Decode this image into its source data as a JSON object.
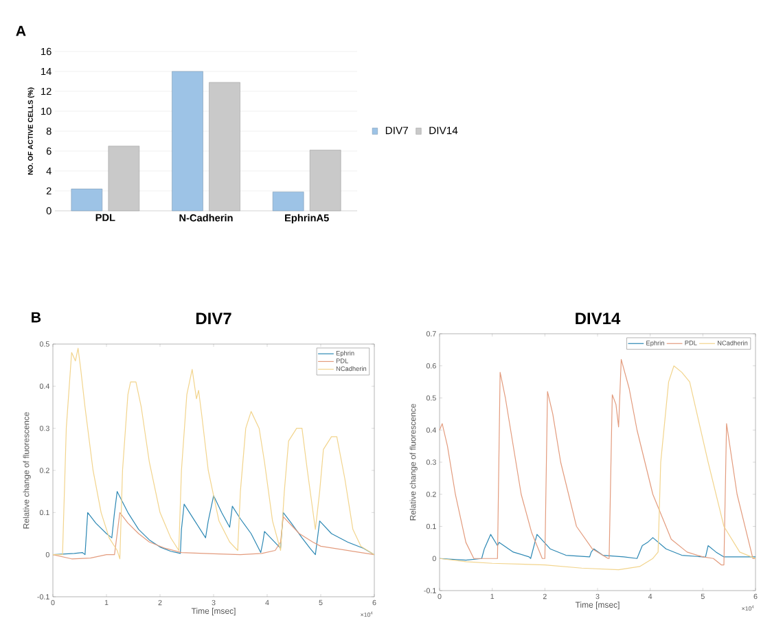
{
  "chart_data": [
    {
      "type": "bar",
      "categories": [
        "PDL",
        "N-Cadherin",
        "EphrinA5"
      ],
      "ylabel": "NO. OF ACTIVE CELLS (%)",
      "ylim": [
        0,
        16
      ],
      "yticks": [
        0,
        2,
        4,
        6,
        8,
        10,
        12,
        14,
        16
      ],
      "grid": "y",
      "legend": "right",
      "annotations": [
        "A"
      ],
      "series": [
        {
          "name": "DIV7",
          "color": "#9dc3e6",
          "values": [
            2.2,
            14,
            1.9
          ]
        },
        {
          "name": "DIV14",
          "color": "#c9c9c9",
          "values": [
            6.5,
            12.9,
            6.1
          ]
        }
      ]
    },
    {
      "type": "line",
      "title": "DIV7",
      "xlabel": "Time [msec]",
      "ylabel": "Relative change of fluorescence",
      "xlim": [
        0,
        6
      ],
      "xticks": [
        0,
        1,
        2,
        3,
        4,
        5,
        6
      ],
      "ylim": [
        -0.1,
        0.5
      ],
      "yticks": [
        -0.1,
        0,
        0.1,
        0.2,
        0.3,
        0.4,
        0.5
      ],
      "legend": "top right",
      "annotations": [
        "B",
        "×10$^{4}$"
      ],
      "series": [
        {
          "name": "Ephrin",
          "color": "#2b87b3",
          "x": [
            0,
            0.4,
            0.55,
            0.6,
            0.65,
            0.8,
            1.0,
            1.1,
            1.15,
            1.2,
            1.4,
            1.6,
            1.8,
            2.0,
            2.2,
            2.38,
            2.4,
            2.45,
            2.65,
            2.85,
            2.9,
            3.0,
            3.15,
            3.3,
            3.35,
            3.5,
            3.7,
            3.88,
            3.92,
            3.95,
            4.1,
            4.25,
            4.3,
            4.45,
            4.65,
            4.8,
            4.9,
            4.98,
            5.2,
            5.5,
            5.8,
            6.0
          ],
          "values": [
            0.0,
            0.003,
            0.005,
            0.0,
            0.1,
            0.075,
            0.05,
            0.04,
            0.1,
            0.15,
            0.1,
            0.06,
            0.035,
            0.018,
            0.008,
            0.003,
            0.06,
            0.12,
            0.08,
            0.04,
            0.08,
            0.14,
            0.1,
            0.065,
            0.115,
            0.085,
            0.05,
            0.005,
            0.03,
            0.055,
            0.035,
            0.015,
            0.1,
            0.075,
            0.04,
            0.015,
            0.0,
            0.08,
            0.05,
            0.03,
            0.015,
            0.0
          ]
        },
        {
          "name": "PDL",
          "color": "#e39b7d",
          "x": [
            0,
            0.35,
            0.7,
            1.0,
            1.15,
            1.2,
            1.25,
            1.4,
            1.6,
            1.8,
            2.1,
            2.4,
            3.0,
            3.5,
            3.9,
            4.15,
            4.25,
            4.3,
            4.45,
            4.6,
            4.85,
            5.0,
            5.5,
            6.0
          ],
          "values": [
            0.0,
            -0.01,
            -0.008,
            0.0,
            0.0,
            0.05,
            0.1,
            0.075,
            0.05,
            0.03,
            0.015,
            0.005,
            0.002,
            0.0,
            0.003,
            0.01,
            0.03,
            0.09,
            0.07,
            0.05,
            0.03,
            0.02,
            0.01,
            0.0
          ]
        },
        {
          "name": "NCadherin",
          "color": "#f2d48c",
          "x": [
            0,
            0.18,
            0.25,
            0.35,
            0.42,
            0.47,
            0.52,
            0.6,
            0.75,
            0.9,
            1.05,
            1.2,
            1.25,
            1.3,
            1.4,
            1.45,
            1.55,
            1.65,
            1.8,
            2.0,
            2.2,
            2.35,
            2.4,
            2.5,
            2.6,
            2.68,
            2.72,
            2.78,
            2.9,
            3.1,
            3.3,
            3.45,
            3.5,
            3.6,
            3.7,
            3.85,
            3.95,
            4.1,
            4.25,
            4.32,
            4.4,
            4.55,
            4.65,
            4.75,
            4.9,
            4.98,
            5.05,
            5.2,
            5.3,
            5.45,
            5.6,
            5.75,
            6.0
          ],
          "values": [
            0.0,
            0.0,
            0.3,
            0.48,
            0.46,
            0.49,
            0.44,
            0.35,
            0.2,
            0.1,
            0.04,
            0.01,
            -0.01,
            0.2,
            0.38,
            0.41,
            0.41,
            0.35,
            0.22,
            0.1,
            0.04,
            0.01,
            0.2,
            0.38,
            0.44,
            0.37,
            0.39,
            0.33,
            0.2,
            0.08,
            0.03,
            0.01,
            0.15,
            0.3,
            0.34,
            0.3,
            0.22,
            0.08,
            0.01,
            0.15,
            0.27,
            0.3,
            0.3,
            0.2,
            0.06,
            0.15,
            0.25,
            0.28,
            0.28,
            0.18,
            0.06,
            0.02,
            0.0
          ]
        }
      ]
    },
    {
      "type": "line",
      "title": "DIV14",
      "xlabel": "Time [msec]",
      "ylabel": "Relative change of fluorescence",
      "xlim": [
        0,
        6
      ],
      "xticks": [
        0,
        1,
        2,
        3,
        4,
        5,
        6
      ],
      "ylim": [
        -0.1,
        0.7
      ],
      "yticks": [
        -0.1,
        0,
        0.1,
        0.2,
        0.3,
        0.4,
        0.5,
        0.6,
        0.7
      ],
      "legend": "top right",
      "annotations": [
        "×10$^{4}$"
      ],
      "series": [
        {
          "name": "Ephrin",
          "color": "#2b87b3",
          "x": [
            0,
            0.5,
            0.8,
            0.85,
            0.97,
            1.1,
            1.13,
            1.4,
            1.7,
            1.73,
            1.85,
            2.1,
            2.4,
            2.85,
            2.88,
            2.93,
            3.1,
            3.5,
            3.75,
            3.85,
            3.95,
            4.05,
            4.3,
            4.6,
            5.0,
            5.05,
            5.1,
            5.25,
            5.4,
            6.0
          ],
          "values": [
            0.0,
            -0.005,
            0.0,
            0.03,
            0.075,
            0.04,
            0.05,
            0.02,
            0.005,
            0.0,
            0.075,
            0.03,
            0.01,
            0.005,
            0.02,
            0.03,
            0.01,
            0.005,
            0.0,
            0.04,
            0.05,
            0.065,
            0.03,
            0.01,
            0.005,
            0.004,
            0.04,
            0.02,
            0.005,
            0.005
          ]
        },
        {
          "name": "PDL",
          "color": "#e39b7d",
          "x": [
            0,
            0.05,
            0.15,
            0.3,
            0.5,
            0.65,
            1.0,
            1.1,
            1.15,
            1.25,
            1.35,
            1.55,
            1.75,
            1.95,
            2.0,
            2.05,
            2.15,
            2.3,
            2.6,
            2.9,
            3.2,
            3.22,
            3.28,
            3.35,
            3.4,
            3.45,
            3.6,
            3.75,
            4.05,
            4.4,
            4.7,
            5.0,
            5.2,
            5.35,
            5.4,
            5.45,
            5.65,
            5.95,
            6.0
          ],
          "values": [
            0.4,
            0.42,
            0.35,
            0.2,
            0.05,
            0.0,
            0.0,
            0.0,
            0.58,
            0.5,
            0.4,
            0.2,
            0.08,
            0.0,
            0.0,
            0.52,
            0.45,
            0.3,
            0.1,
            0.03,
            0.0,
            0.0,
            0.51,
            0.48,
            0.41,
            0.62,
            0.53,
            0.4,
            0.2,
            0.06,
            0.02,
            0.005,
            0.0,
            -0.02,
            -0.02,
            0.42,
            0.2,
            0.0,
            0.0
          ]
        },
        {
          "name": "NCadherin",
          "color": "#f2d48c",
          "x": [
            0,
            0.5,
            1.0,
            2.0,
            2.7,
            3.4,
            3.8,
            4.05,
            4.15,
            4.2,
            4.35,
            4.45,
            4.6,
            4.75,
            5.1,
            5.4,
            5.7,
            6.0
          ],
          "values": [
            0.0,
            -0.01,
            -0.015,
            -0.02,
            -0.03,
            -0.035,
            -0.025,
            0.0,
            0.02,
            0.3,
            0.55,
            0.6,
            0.58,
            0.55,
            0.3,
            0.1,
            0.02,
            0.0
          ]
        }
      ]
    }
  ]
}
